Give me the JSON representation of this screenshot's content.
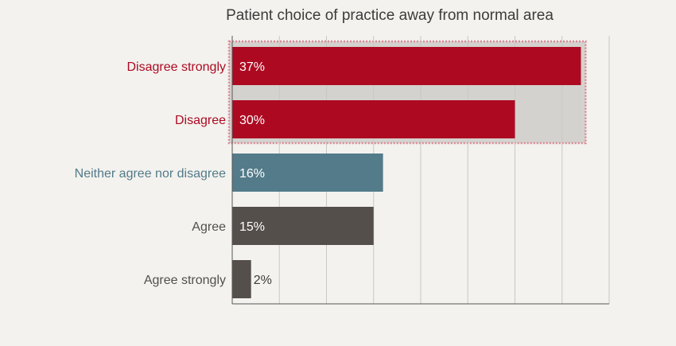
{
  "chart_data": {
    "type": "bar",
    "orientation": "horizontal",
    "title": "Patient choice of practice away from normal area",
    "categories": [
      "Disagree strongly",
      "Disagree",
      "Neither agree nor disagree",
      "Agree",
      "Agree strongly"
    ],
    "values": [
      37,
      30,
      16,
      15,
      2
    ],
    "value_labels": [
      "37%",
      "30%",
      "16%",
      "15%",
      "2%"
    ],
    "unit": "%",
    "xlim": [
      0,
      40
    ],
    "grid": true,
    "highlight_categories": [
      "Disagree strongly",
      "Disagree"
    ],
    "colors": {
      "disagree": "#ad0a22",
      "neutral": "#537b8a",
      "agree": "#544f4b",
      "highlight_band": "#d4d2ce",
      "highlight_border": "#d98a95",
      "grid": "#c9c7c2",
      "axis": "#555555",
      "title_text": "#3c3c3c",
      "value_label_inside": "#ffffff",
      "value_label_outside": "#3c3c3c",
      "background": "#f3f2ee"
    },
    "bar_colors": [
      "#ad0a22",
      "#ad0a22",
      "#537b8a",
      "#544f4b",
      "#544f4b"
    ]
  }
}
